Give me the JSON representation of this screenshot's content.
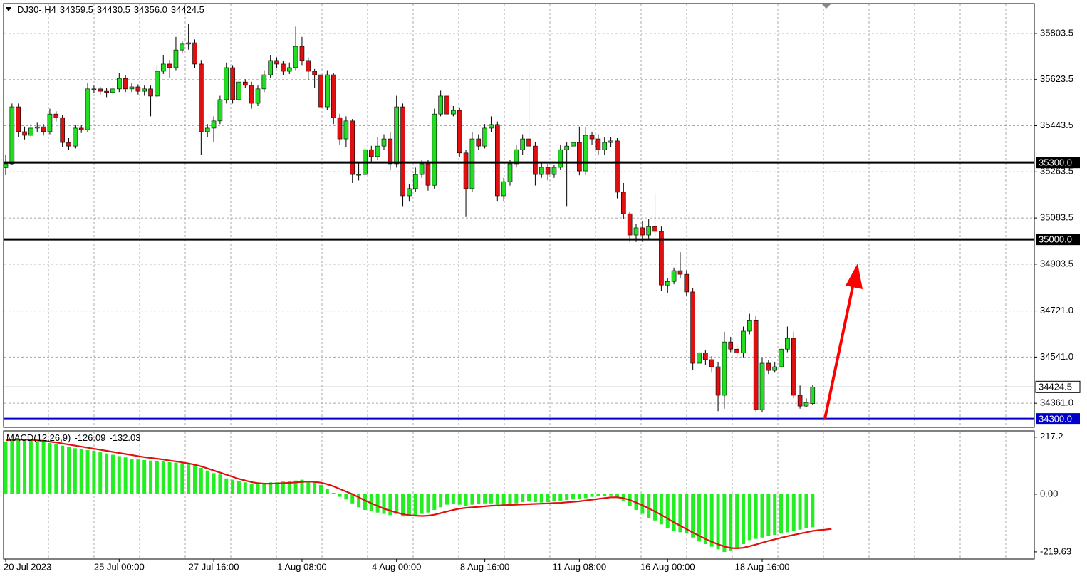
{
  "chart_data": [
    {
      "type": "candlestick",
      "title": "DJ30-,H4",
      "title_values": [
        "34359.5",
        "34430.5",
        "34356.0",
        "34424.5"
      ],
      "categories": [
        "20 Jul 2023",
        null,
        null,
        null,
        null,
        null,
        null,
        null,
        null,
        null,
        null,
        null,
        null,
        null,
        null,
        null,
        null,
        null,
        "25 Jul 00:00",
        null,
        null,
        null,
        null,
        null,
        null,
        null,
        null,
        null,
        null,
        null,
        null,
        null,
        null,
        "27 Jul 16:00",
        null,
        null,
        null,
        null,
        null,
        null,
        null,
        null,
        null,
        null,
        null,
        null,
        null,
        "1 Aug 08:00",
        null,
        null,
        null,
        null,
        null,
        null,
        null,
        null,
        null,
        null,
        null,
        null,
        null,
        null,
        "4 Aug 00:00",
        null,
        null,
        null,
        null,
        null,
        null,
        null,
        null,
        null,
        null,
        null,
        null,
        null,
        "8 Aug 16:00",
        null,
        null,
        null,
        null,
        null,
        null,
        null,
        null,
        null,
        null,
        null,
        null,
        null,
        null,
        "11 Aug 08:00",
        null,
        null,
        null,
        null,
        null,
        null,
        null,
        null,
        null,
        null,
        null,
        null,
        null,
        "16 Aug 00:00",
        null,
        null,
        null,
        null,
        null,
        null,
        null,
        null,
        null,
        null,
        null,
        null,
        null,
        null,
        "18 Aug 16:00",
        null,
        null,
        null,
        null,
        null,
        null,
        null,
        null
      ],
      "candles": [
        [
          35280,
          35330,
          35250,
          35295
        ],
        [
          35295,
          35530,
          35290,
          35517
        ],
        [
          35517,
          35530,
          35400,
          35420
        ],
        [
          35420,
          35440,
          35390,
          35406
        ],
        [
          35406,
          35450,
          35395,
          35434
        ],
        [
          35434,
          35455,
          35420,
          35439
        ],
        [
          35439,
          35450,
          35405,
          35420
        ],
        [
          35420,
          35510,
          35410,
          35489
        ],
        [
          35489,
          35500,
          35460,
          35475
        ],
        [
          35475,
          35485,
          35360,
          35378
        ],
        [
          35378,
          35395,
          35350,
          35364
        ],
        [
          35364,
          35445,
          35355,
          35434
        ],
        [
          35434,
          35445,
          35415,
          35428
        ],
        [
          35428,
          35610,
          35420,
          35587
        ],
        [
          35587,
          35600,
          35570,
          35587
        ],
        [
          35587,
          35595,
          35565,
          35578
        ],
        [
          35578,
          35590,
          35555,
          35573
        ],
        [
          35573,
          35600,
          35560,
          35587
        ],
        [
          35587,
          35650,
          35575,
          35628
        ],
        [
          35628,
          35640,
          35575,
          35587
        ],
        [
          35587,
          35610,
          35575,
          35595
        ],
        [
          35595,
          35605,
          35565,
          35578
        ],
        [
          35578,
          35600,
          35560,
          35587
        ],
        [
          35587,
          35600,
          35480,
          35559
        ],
        [
          35559,
          35680,
          35550,
          35656
        ],
        [
          35656,
          35720,
          35645,
          35684
        ],
        [
          35684,
          35700,
          35630,
          35670
        ],
        [
          35670,
          35790,
          35660,
          35739
        ],
        [
          35739,
          35775,
          35725,
          35762
        ],
        [
          35762,
          35840,
          35740,
          35767
        ],
        [
          35767,
          35780,
          35670,
          35684
        ],
        [
          35684,
          35700,
          35330,
          35420
        ],
        [
          35420,
          35450,
          35400,
          35434
        ],
        [
          35434,
          35480,
          35380,
          35462
        ],
        [
          35462,
          35560,
          35450,
          35545
        ],
        [
          35545,
          35690,
          35530,
          35670
        ],
        [
          35670,
          35680,
          35530,
          35545
        ],
        [
          35545,
          35630,
          35535,
          35614
        ],
        [
          35614,
          35625,
          35590,
          35601
        ],
        [
          35601,
          35615,
          35510,
          35531
        ],
        [
          35531,
          35600,
          35520,
          35587
        ],
        [
          35587,
          35660,
          35575,
          35642
        ],
        [
          35642,
          35720,
          35630,
          35698
        ],
        [
          35698,
          35710,
          35670,
          35684
        ],
        [
          35684,
          35695,
          35640,
          35656
        ],
        [
          35656,
          35690,
          35645,
          35670
        ],
        [
          35670,
          35830,
          35660,
          35753
        ],
        [
          35753,
          35790,
          35680,
          35698
        ],
        [
          35698,
          35710,
          35620,
          35656
        ],
        [
          35656,
          35665,
          35590,
          35642
        ],
        [
          35642,
          35655,
          35500,
          35517
        ],
        [
          35517,
          35660,
          35505,
          35642
        ],
        [
          35642,
          35650,
          35450,
          35475
        ],
        [
          35475,
          35490,
          35370,
          35392
        ],
        [
          35392,
          35480,
          35360,
          35462
        ],
        [
          35462,
          35470,
          35220,
          35253
        ],
        [
          35253,
          35300,
          35230,
          35253
        ],
        [
          35253,
          35370,
          35240,
          35350
        ],
        [
          35350,
          35365,
          35300,
          35323
        ],
        [
          35323,
          35400,
          35310,
          35364
        ],
        [
          35364,
          35410,
          35350,
          35392
        ],
        [
          35392,
          35420,
          35270,
          35295
        ],
        [
          35295,
          35560,
          35280,
          35517
        ],
        [
          35517,
          35530,
          35130,
          35170
        ],
        [
          35170,
          35215,
          35150,
          35198
        ],
        [
          35198,
          35280,
          35185,
          35253
        ],
        [
          35253,
          35310,
          35240,
          35295
        ],
        [
          35295,
          35310,
          35190,
          35211
        ],
        [
          35211,
          35510,
          35195,
          35489
        ],
        [
          35489,
          35580,
          35480,
          35559
        ],
        [
          35559,
          35575,
          35470,
          35489
        ],
        [
          35489,
          35520,
          35480,
          35503
        ],
        [
          35503,
          35515,
          35320,
          35337
        ],
        [
          35337,
          35350,
          35090,
          35198
        ],
        [
          35198,
          35420,
          35185,
          35392
        ],
        [
          35392,
          35410,
          35350,
          35364
        ],
        [
          35364,
          35450,
          35355,
          35434
        ],
        [
          35434,
          35480,
          35420,
          35448
        ],
        [
          35448,
          35460,
          35150,
          35170
        ],
        [
          35170,
          35240,
          35150,
          35225
        ],
        [
          35225,
          35310,
          35210,
          35295
        ],
        [
          35295,
          35370,
          35280,
          35350
        ],
        [
          35350,
          35410,
          35330,
          35392
        ],
        [
          35392,
          35650,
          35350,
          35364
        ],
        [
          35364,
          35380,
          35210,
          35253
        ],
        [
          35253,
          35300,
          35240,
          35281
        ],
        [
          35281,
          35295,
          35230,
          35253
        ],
        [
          35253,
          35290,
          35240,
          35281
        ],
        [
          35281,
          35370,
          35270,
          35350
        ],
        [
          35350,
          35380,
          35130,
          35364
        ],
        [
          35364,
          35420,
          35350,
          35378
        ],
        [
          35378,
          35440,
          35250,
          35267
        ],
        [
          35267,
          35440,
          35250,
          35406
        ],
        [
          35406,
          35420,
          35370,
          35392
        ],
        [
          35392,
          35410,
          35330,
          35350
        ],
        [
          35350,
          35400,
          35330,
          35378
        ],
        [
          35378,
          35400,
          35360,
          35384
        ],
        [
          35384,
          35395,
          35160,
          35184
        ],
        [
          35184,
          35220,
          35080,
          35100
        ],
        [
          35100,
          35110,
          34990,
          35017
        ],
        [
          35017,
          35060,
          34990,
          35045
        ],
        [
          35045,
          35070,
          34990,
          35017
        ],
        [
          35017,
          35080,
          35000,
          35050
        ],
        [
          35050,
          35180,
          35010,
          35031
        ],
        [
          35031,
          35050,
          34800,
          34822
        ],
        [
          34822,
          34850,
          34790,
          34836
        ],
        [
          34836,
          34890,
          34825,
          34878
        ],
        [
          34878,
          34950,
          34850,
          34864
        ],
        [
          34864,
          34880,
          34780,
          34795
        ],
        [
          34795,
          34810,
          34490,
          34517
        ],
        [
          34517,
          34570,
          34500,
          34558
        ],
        [
          34558,
          34570,
          34510,
          34531
        ],
        [
          34531,
          34545,
          34480,
          34503
        ],
        [
          34503,
          34520,
          34330,
          34392
        ],
        [
          34392,
          34640,
          34340,
          34600
        ],
        [
          34600,
          34620,
          34560,
          34572
        ],
        [
          34572,
          34590,
          34540,
          34558
        ],
        [
          34558,
          34660,
          34540,
          34642
        ],
        [
          34642,
          34710,
          34630,
          34683
        ],
        [
          34683,
          34700,
          34330,
          34336
        ],
        [
          34336,
          34540,
          34325,
          34517
        ],
        [
          34517,
          34530,
          34475,
          34489
        ],
        [
          34489,
          34520,
          34480,
          34503
        ],
        [
          34503,
          34590,
          34490,
          34572
        ],
        [
          34572,
          34660,
          34560,
          34614
        ],
        [
          34614,
          34640,
          34380,
          34392
        ],
        [
          34392,
          34430,
          34340,
          34350
        ],
        [
          34350,
          34380,
          34345,
          34364
        ],
        [
          34359.5,
          34430.5,
          34356.0,
          34424.5
        ]
      ],
      "ylim": [
        34267,
        35920
      ],
      "yticks": [
        35803.5,
        35623.5,
        35443.5,
        35263.5,
        35083.5,
        34903.5,
        {
          "value": 34721,
          "label": "34721.0"
        },
        {
          "value": 34541,
          "label": "34541.0"
        },
        {
          "value": 34361,
          "label": "34361.0"
        }
      ],
      "levels": [
        {
          "value": 35300,
          "label": "35300.0",
          "color": "#000000"
        },
        {
          "value": 35000,
          "label": "35000.0",
          "color": "#000000"
        },
        {
          "value": 34300,
          "label": "34300.0",
          "color": "#0000c8"
        }
      ],
      "current_price": 34424.5,
      "up_color": "#22dd22",
      "down_color": "#e01010",
      "grid": true
    },
    {
      "type": "macd",
      "title": "MACD(12,26,9)",
      "histogram": [
        200,
        205,
        210,
        208,
        205,
        200,
        198,
        195,
        190,
        185,
        180,
        175,
        172,
        168,
        165,
        160,
        155,
        150,
        145,
        140,
        135,
        132,
        130,
        128,
        125,
        125,
        122,
        120,
        118,
        115,
        110,
        100,
        90,
        80,
        75,
        60,
        55,
        50,
        45,
        40,
        40,
        42,
        45,
        45,
        48,
        50,
        52,
        55,
        50,
        45,
        35,
        20,
        5,
        -10,
        -20,
        -35,
        -50,
        -60,
        -65,
        -70,
        -75,
        -80,
        -75,
        -85,
        -80,
        -80,
        -75,
        -70,
        -60,
        -50,
        -40,
        -38,
        -40,
        -45,
        -40,
        -38,
        -35,
        -35,
        -40,
        -40,
        -38,
        -35,
        -30,
        -28,
        -30,
        -32,
        -30,
        -28,
        -25,
        -22,
        -20,
        -18,
        -15,
        -10,
        -8,
        -6,
        -5,
        -10,
        -25,
        -45,
        -60,
        -75,
        -90,
        -100,
        -115,
        -130,
        -140,
        -145,
        -150,
        -165,
        -180,
        -190,
        -200,
        -210,
        -220,
        -215,
        -205,
        -190,
        -175,
        -170,
        -165,
        -160,
        -155,
        -150,
        -145,
        -140,
        -135,
        -130,
        -126.09
      ],
      "signal": [
        205,
        207,
        208,
        208,
        207,
        205,
        203,
        200,
        197,
        193,
        189,
        185,
        181,
        177,
        173,
        169,
        165,
        161,
        157,
        153,
        149,
        145,
        141,
        138,
        135,
        132,
        128,
        125,
        121,
        117,
        112,
        106,
        98,
        90,
        82,
        74,
        66,
        58,
        52,
        46,
        42,
        40,
        40,
        41,
        42,
        43,
        45,
        47,
        48,
        47,
        44,
        38,
        30,
        20,
        10,
        0,
        -12,
        -24,
        -35,
        -45,
        -55,
        -63,
        -70,
        -76,
        -80,
        -82,
        -83,
        -82,
        -78,
        -72,
        -66,
        -60,
        -55,
        -52,
        -50,
        -48,
        -46,
        -44,
        -43,
        -42,
        -41,
        -40,
        -39,
        -38,
        -37,
        -36,
        -35,
        -34,
        -33,
        -31,
        -29,
        -27,
        -24,
        -21,
        -18,
        -15,
        -12,
        -12,
        -15,
        -22,
        -32,
        -42,
        -54,
        -66,
        -79,
        -93,
        -107,
        -120,
        -133,
        -146,
        -158,
        -170,
        -181,
        -191,
        -199,
        -205,
        -206,
        -204,
        -198,
        -192,
        -185,
        -178,
        -172,
        -166,
        -160,
        -155,
        -150,
        -145,
        -140,
        -137,
        -135,
        -132.03
      ],
      "ylim": [
        -247,
        241
      ],
      "yticks": [
        217.2,
        {
          "value": 0,
          "label": "0.00"
        },
        -219.63
      ],
      "histogram_color": "#22ee22",
      "signal_color": "#e01010"
    }
  ]
}
